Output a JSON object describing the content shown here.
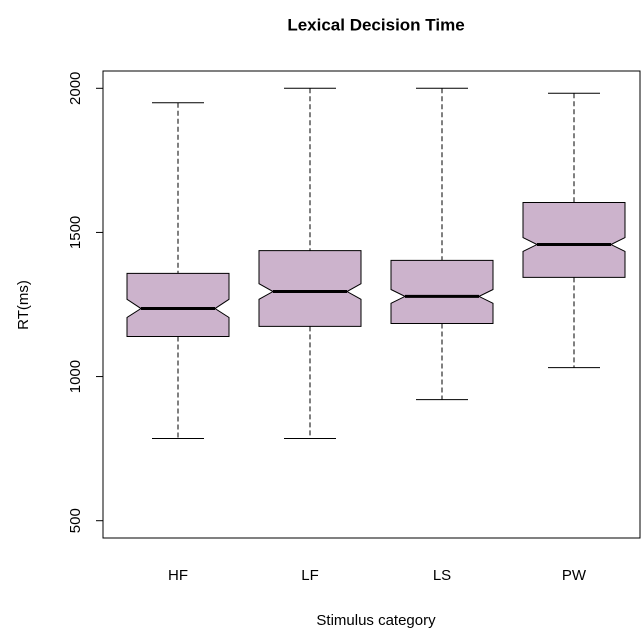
{
  "chart_data": {
    "type": "boxplot",
    "title": "Lexical Decision Time",
    "xlabel": "Stimulus category",
    "ylabel": "RT(ms)",
    "categories": [
      "HF",
      "LF",
      "LS",
      "PW"
    ],
    "color": "#ccb3cc",
    "notch": true,
    "ylim": [
      440,
      2060
    ],
    "yticks": [
      500,
      1000,
      1500,
      2000
    ],
    "series": [
      {
        "name": "HF",
        "lower_whisker": 785,
        "q1": 1139,
        "notch_low": 1205,
        "median": 1236,
        "notch_high": 1268,
        "q3": 1358,
        "upper_whisker": 1950
      },
      {
        "name": "LF",
        "lower_whisker": 785,
        "q1": 1174,
        "notch_low": 1268,
        "median": 1295,
        "notch_high": 1322,
        "q3": 1437,
        "upper_whisker": 2000
      },
      {
        "name": "LS",
        "lower_whisker": 920,
        "q1": 1184,
        "notch_low": 1254,
        "median": 1278,
        "notch_high": 1302,
        "q3": 1403,
        "upper_whisker": 2000
      },
      {
        "name": "PW",
        "lower_whisker": 1031,
        "q1": 1344,
        "notch_low": 1434,
        "median": 1458,
        "notch_high": 1482,
        "q3": 1604,
        "upper_whisker": 1983
      }
    ]
  }
}
